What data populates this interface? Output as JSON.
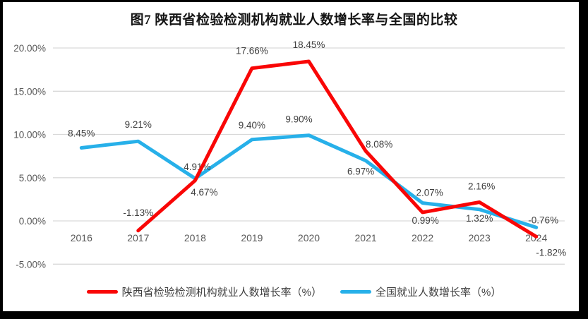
{
  "chart_data": {
    "type": "line",
    "title": "图7 陕西省检验检测机构就业人数增长率与全国的比较",
    "categories": [
      "2016",
      "2017",
      "2018",
      "2019",
      "2020",
      "2021",
      "2022",
      "2023",
      "2024"
    ],
    "y_axis": {
      "label_format": "percent",
      "range": [
        -5,
        20
      ],
      "grid": true,
      "ticks": [
        {
          "label": "20.00%",
          "value": 20
        },
        {
          "label": "15.00%",
          "value": 15
        },
        {
          "label": "10.00%",
          "value": 10
        },
        {
          "label": "5.00%",
          "value": 5
        },
        {
          "label": "0.00%",
          "value": 0
        },
        {
          "label": "-5.00%",
          "value": -5
        }
      ]
    },
    "series": [
      {
        "name": "陕西省检验检测机构就业人数增长率（%）",
        "color": "#f90606",
        "values": [
          null,
          -1.13,
          4.67,
          17.66,
          18.45,
          8.08,
          0.99,
          2.16,
          -1.82
        ],
        "labels": [
          null,
          "-1.13%",
          "4.67%",
          "17.66%",
          "18.45%",
          "8.08%",
          "0.99%",
          "2.16%",
          "-1.82%"
        ],
        "label_offsets": [
          null,
          [
            0,
            -21
          ],
          [
            13,
            21
          ],
          [
            0,
            -20
          ],
          [
            0,
            -19
          ],
          [
            19,
            -5
          ],
          [
            4,
            16
          ],
          [
            3,
            -18
          ],
          [
            21,
            27
          ]
        ]
      },
      {
        "name": "全国就业人数增长率（%）",
        "color": "#27b0e9",
        "values": [
          8.45,
          9.21,
          4.91,
          9.4,
          9.9,
          6.97,
          2.07,
          1.32,
          -0.76
        ],
        "labels": [
          "8.45%",
          "9.21%",
          "4.91%",
          "9.40%",
          "9.90%",
          "6.97%",
          "2.07%",
          "1.32%",
          "-0.76%"
        ],
        "label_offsets": [
          [
            0,
            -16
          ],
          [
            0,
            -19
          ],
          [
            3,
            -12
          ],
          [
            0,
            -16
          ],
          [
            -14,
            -18
          ],
          [
            -7,
            20
          ],
          [
            10,
            -10
          ],
          [
            0,
            17
          ],
          [
            10,
            -6
          ]
        ]
      }
    ],
    "legend_position": "bottom",
    "colors": {
      "grid": "#d9d9d9",
      "tick_text": "#595959",
      "data_label": "#3f3f3f",
      "frame": "#000000",
      "background": "#ffffff"
    }
  }
}
